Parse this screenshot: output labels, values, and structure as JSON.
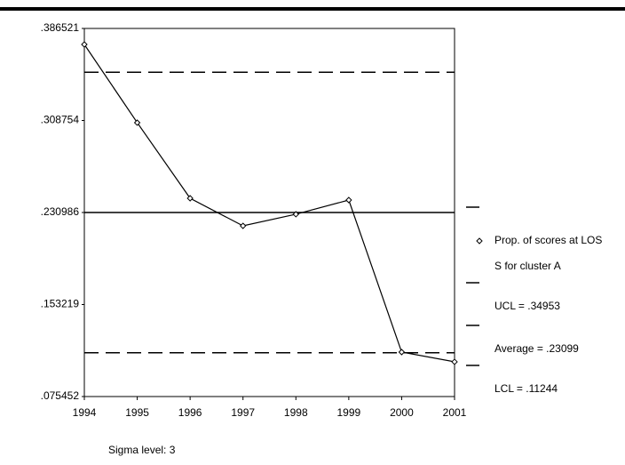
{
  "chart_data": {
    "type": "line",
    "x": [
      1994,
      1995,
      1996,
      1997,
      1998,
      1999,
      2000,
      2001
    ],
    "xlim": [
      1994,
      2001
    ],
    "xticks": [
      1994,
      1995,
      1996,
      1997,
      1998,
      1999,
      2000,
      2001
    ],
    "ylim": [
      0.075452,
      0.386521
    ],
    "yticks": [
      {
        "value": 0.386521,
        "label": ".386521"
      },
      {
        "value": 0.308754,
        "label": ".308754"
      },
      {
        "value": 0.230986,
        "label": ".230986"
      },
      {
        "value": 0.153219,
        "label": ".153219"
      },
      {
        "value": 0.075452,
        "label": ".075452"
      }
    ],
    "series": [
      {
        "name": "Prop. of scores at LOSS for cluster A",
        "color": "#000000",
        "values": [
          0.373,
          0.3069,
          0.243,
          0.2197,
          0.2295,
          0.2415,
          0.113,
          0.1048
        ]
      }
    ],
    "control_lines": [
      {
        "name": "UCL = .34953",
        "value": 0.34953,
        "style": "dashed"
      },
      {
        "name": "Average = .23099",
        "value": 0.23099,
        "style": "solid"
      },
      {
        "name": "LCL = .11244",
        "value": 0.11244,
        "style": "dashed"
      }
    ],
    "footnote": "Sigma level: 3"
  }
}
